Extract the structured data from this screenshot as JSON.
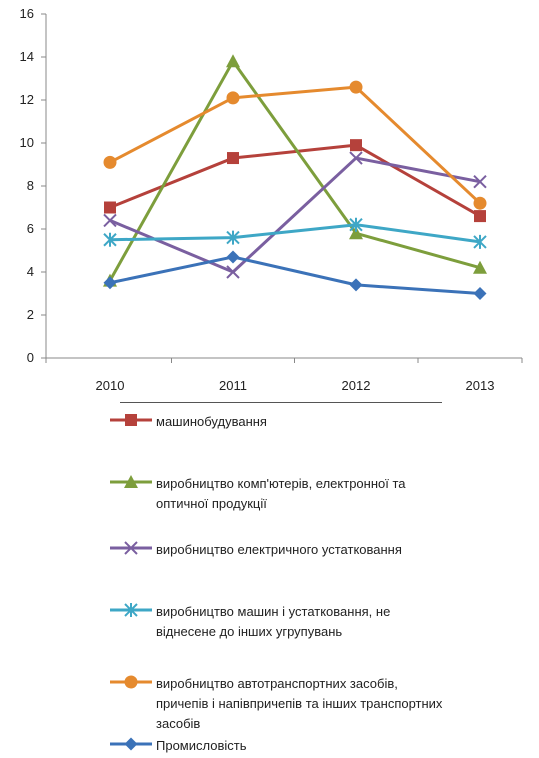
{
  "chart_data": {
    "type": "line",
    "categories": [
      "2010",
      "2011",
      "2012",
      "2013"
    ],
    "ylim": [
      0,
      16
    ],
    "yticks": [
      0,
      2,
      4,
      6,
      8,
      10,
      12,
      14,
      16
    ],
    "grid": false,
    "legend_position": "bottom",
    "series": [
      {
        "name": "машинобудування",
        "values": [
          7.0,
          9.3,
          9.9,
          6.6
        ],
        "color": "#b5413b",
        "marker": "square"
      },
      {
        "name": "виробництво комп'ютерів, електронної та оптичної продукції",
        "values": [
          3.6,
          13.8,
          5.8,
          4.2
        ],
        "color": "#7d9e3c",
        "marker": "triangle"
      },
      {
        "name": "виробництво електричного устатковання",
        "values": [
          6.4,
          4.0,
          9.3,
          8.2
        ],
        "color": "#7a5fa0",
        "marker": "x"
      },
      {
        "name": "виробництво машин і устатковання, не віднесене до інших угрупувань",
        "values": [
          5.5,
          5.6,
          6.2,
          5.4
        ],
        "color": "#3ea7c6",
        "marker": "star"
      },
      {
        "name": "виробництво автотранспортних засобів, причепів і напівпричепів та інших транспортних засобів",
        "values": [
          9.1,
          12.1,
          12.6,
          7.2
        ],
        "color": "#e58a2e",
        "marker": "circle"
      },
      {
        "name": "Промисловість",
        "values": [
          3.5,
          4.7,
          3.4,
          3.0
        ],
        "color": "#3b72b8",
        "marker": "diamond"
      }
    ]
  }
}
